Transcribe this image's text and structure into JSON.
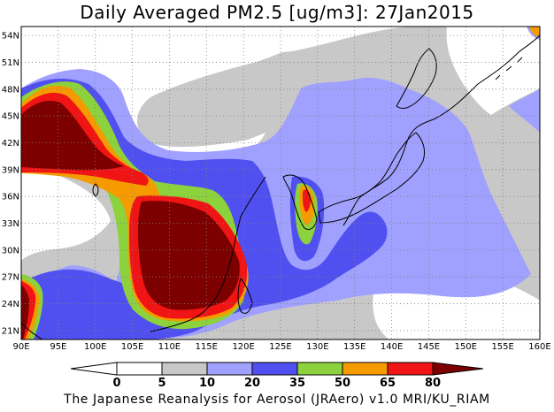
{
  "title": "Daily Averaged PM2.5 [ug/m3]: 27Jan2015",
  "footer": "The Japanese Reanalysis for Aerosol (JRAero) v1.0 MRI/KU_RIAM",
  "map": {
    "lon_range": [
      90,
      160
    ],
    "lat_range": [
      20,
      55
    ],
    "lon_ticks": [
      90,
      95,
      100,
      105,
      110,
      115,
      120,
      125,
      130,
      135,
      140,
      145,
      150,
      155,
      160
    ],
    "lon_labels": [
      "90E",
      "95E",
      "100E",
      "105E",
      "110E",
      "115E",
      "120E",
      "125E",
      "130E",
      "135E",
      "140E",
      "145E",
      "150E",
      "155E",
      "160E"
    ],
    "lat_ticks": [
      21,
      24,
      27,
      30,
      33,
      36,
      39,
      42,
      45,
      48,
      51,
      54
    ],
    "lat_labels": [
      "21N",
      "24N",
      "27N",
      "30N",
      "33N",
      "36N",
      "39N",
      "42N",
      "45N",
      "48N",
      "51N",
      "54N"
    ],
    "grid": "dotted"
  },
  "colorbar": {
    "levels": [
      "0",
      "5",
      "10",
      "20",
      "35",
      "50",
      "65",
      "80"
    ],
    "colors": [
      "#ffffff",
      "#ffffff",
      "#c8c8c8",
      "#a0a0ff",
      "#5050f0",
      "#8cd23c",
      "#f59b00",
      "#f01414",
      "#7d0000"
    ]
  }
}
